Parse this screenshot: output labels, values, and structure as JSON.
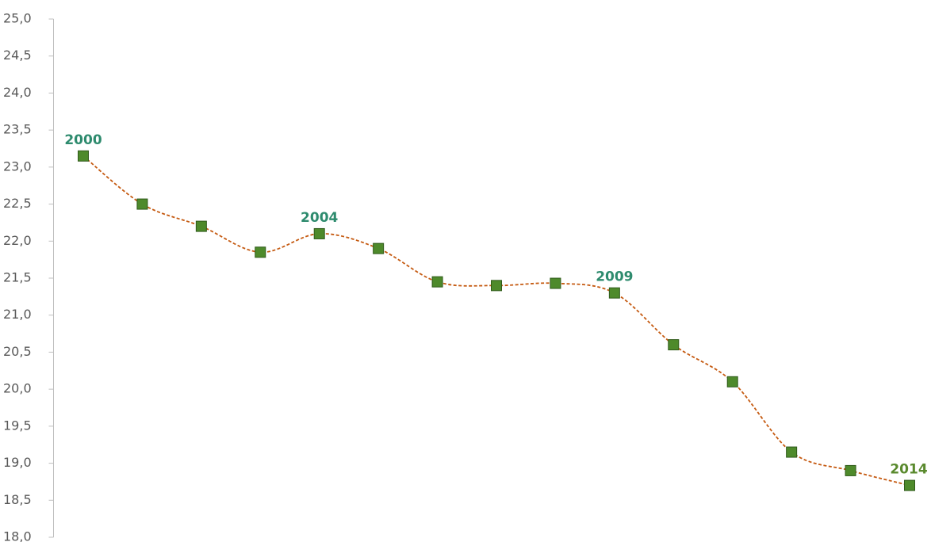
{
  "chart_data": {
    "type": "line",
    "categories": [
      "2000",
      null,
      null,
      null,
      "2004",
      null,
      null,
      null,
      null,
      "2009",
      null,
      null,
      null,
      null,
      "2014"
    ],
    "category_label_colors": [
      "#2e8b6e",
      null,
      null,
      null,
      "#2e8b6e",
      null,
      null,
      null,
      null,
      "#2e8b6e",
      null,
      null,
      null,
      null,
      "#5a8a2e"
    ],
    "series": [
      {
        "color": "#c55a11",
        "marker_color": "#4e8a2b",
        "values": [
          23.15,
          22.5,
          22.2,
          21.85,
          22.1,
          21.9,
          21.45,
          21.4,
          21.43,
          21.3,
          20.6,
          20.1,
          19.15,
          18.9,
          18.7
        ]
      }
    ],
    "ylim": [
      18.0,
      25.0
    ],
    "yticks": [
      {
        "value": 18.0,
        "label": "18,0"
      },
      {
        "value": 18.5,
        "label": "18,5"
      },
      {
        "value": 19.0,
        "label": "19,0"
      },
      {
        "value": 19.5,
        "label": "19,5"
      },
      {
        "value": 20.0,
        "label": "20,0"
      },
      {
        "value": 20.5,
        "label": "20,5"
      },
      {
        "value": 21.0,
        "label": "21,0"
      },
      {
        "value": 21.5,
        "label": "21,5"
      },
      {
        "value": 22.0,
        "label": "22,0"
      },
      {
        "value": 22.5,
        "label": "22,5"
      },
      {
        "value": 23.0,
        "label": "23,0"
      },
      {
        "value": 23.5,
        "label": "23,5"
      },
      {
        "value": 24.0,
        "label": "24,0"
      },
      {
        "value": 24.5,
        "label": "24,5"
      },
      {
        "value": 25.0,
        "label": "25,0"
      }
    ],
    "grid": false
  }
}
